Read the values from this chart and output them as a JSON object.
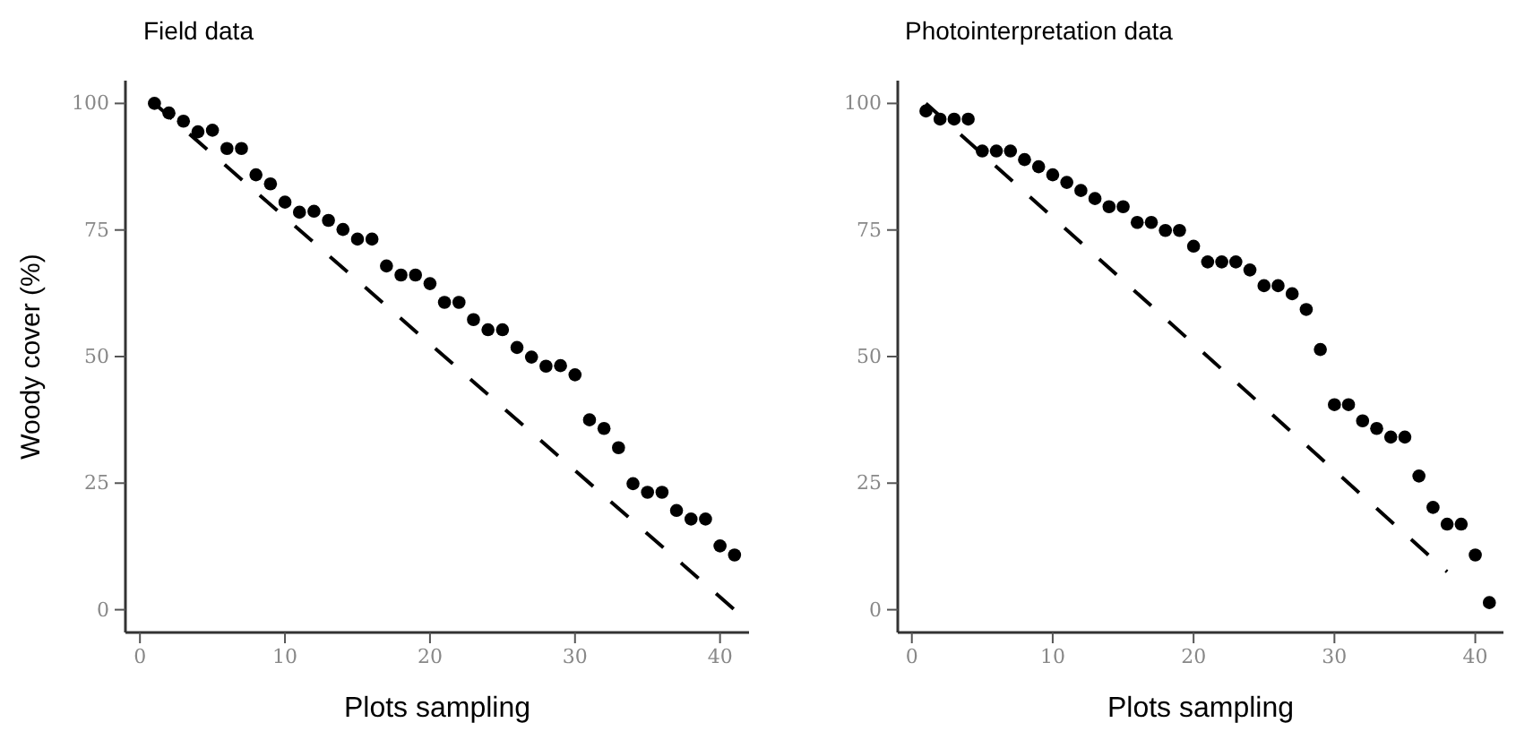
{
  "chart_data": [
    {
      "type": "scatter",
      "title": "Field data",
      "xlabel": "Plots sampling",
      "ylabel": "Woody cover (%)",
      "xlim": [
        -1,
        42
      ],
      "ylim": [
        -4.5,
        104.5
      ],
      "xticks": [
        0,
        10,
        20,
        30,
        40
      ],
      "yticks": [
        0,
        25,
        50,
        75,
        100
      ],
      "grid": false,
      "marker": "circle",
      "series": [
        {
          "color": "#000000",
          "x": [
            1,
            2,
            3,
            4,
            5,
            6,
            7,
            8,
            9,
            10,
            11,
            12,
            13,
            14,
            15,
            16,
            17,
            18,
            19,
            20,
            21,
            22,
            23,
            24,
            25,
            26,
            27,
            28,
            29,
            30,
            31,
            32,
            33,
            34,
            35,
            36,
            37,
            38,
            39,
            40,
            41
          ],
          "values": [
            100,
            98.1,
            96.5,
            94.4,
            94.7,
            91.1,
            91.1,
            85.9,
            84.1,
            80.5,
            78.5,
            78.7,
            76.9,
            75.1,
            73.2,
            73.2,
            67.9,
            66.1,
            66.1,
            64.4,
            60.7,
            60.7,
            57.3,
            55.3,
            55.3,
            51.8,
            49.9,
            48.1,
            48.2,
            46.4,
            37.5,
            35.8,
            32,
            24.9,
            23.2,
            23.2,
            19.6,
            17.9,
            17.9,
            12.6,
            10.8
          ]
        },
        {
          "type": "line",
          "color": "#000000",
          "line_style": "dashed",
          "marker": "none",
          "x": [
            1,
            41
          ],
          "values": [
            100,
            0
          ]
        }
      ]
    },
    {
      "type": "scatter",
      "title": "Photointerpretation data",
      "xlabel": "Plots sampling",
      "xlim": [
        -1,
        42
      ],
      "ylim": [
        -4.5,
        104.5
      ],
      "xticks": [
        0,
        10,
        20,
        30,
        40
      ],
      "yticks": [
        0,
        25,
        50,
        75,
        100
      ],
      "grid": false,
      "marker": "circle",
      "series": [
        {
          "color": "#000000",
          "x": [
            1,
            2,
            3,
            4,
            5,
            6,
            7,
            8,
            9,
            10,
            11,
            12,
            13,
            14,
            15,
            16,
            17,
            18,
            19,
            20,
            21,
            22,
            23,
            24,
            25,
            26,
            27,
            28,
            29,
            30,
            31,
            32,
            33,
            34,
            35,
            36,
            37,
            38,
            39,
            40,
            41
          ],
          "values": [
            98.5,
            96.9,
            96.9,
            96.9,
            90.6,
            90.6,
            90.6,
            88.9,
            87.5,
            85.9,
            84.4,
            82.8,
            81.2,
            79.6,
            79.6,
            76.5,
            76.5,
            74.9,
            74.9,
            71.8,
            68.7,
            68.7,
            68.7,
            67.1,
            64,
            64,
            62.4,
            59.3,
            51.4,
            40.5,
            40.5,
            37.3,
            35.8,
            34.1,
            34.1,
            26.4,
            20.2,
            16.9,
            16.9,
            10.8,
            1.4
          ]
        },
        {
          "type": "line",
          "color": "#000000",
          "line_style": "dashed",
          "marker": "none",
          "x": [
            1,
            38
          ],
          "values": [
            100,
            7.5
          ]
        }
      ]
    }
  ]
}
